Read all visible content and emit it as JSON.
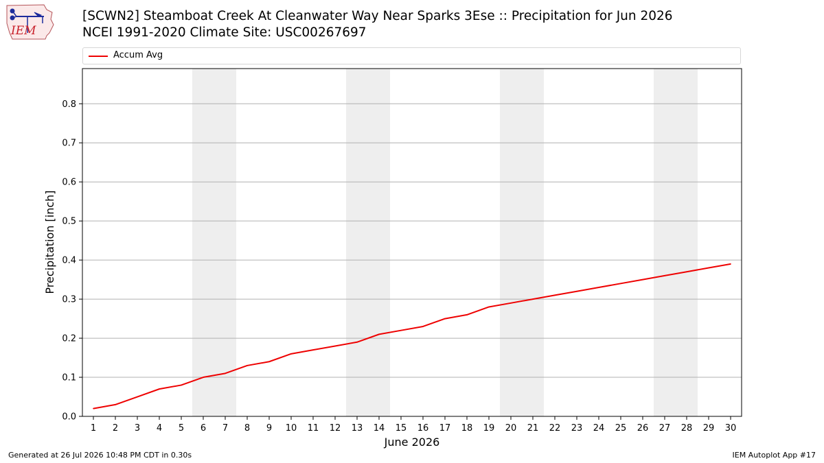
{
  "header": {
    "title_line1": "[SCWN2] Steamboat Creek At Cleanwater Way Near Sparks 3Ese :: Precipitation for Jun 2026",
    "title_line2": "NCEI 1991-2020 Climate Site: USC00267697"
  },
  "logo": {
    "text": "IEM"
  },
  "footer": {
    "generated": "Generated at 26 Jul 2026 10:48 PM CDT in 0.30s",
    "app": "IEM Autoplot App #17"
  },
  "colors": {
    "line": "#ee0000",
    "weekend_band": "#eeeeee",
    "grid": "#b0b0b0"
  },
  "chart_data": {
    "type": "line",
    "title": "[SCWN2] Steamboat Creek At Cleanwater Way Near Sparks 3Ese :: Precipitation for Jun 2026",
    "subtitle": "NCEI 1991-2020 Climate Site: USC00267697",
    "xlabel": "June 2026",
    "ylabel": "Precipitation [inch]",
    "x": [
      1,
      2,
      3,
      4,
      5,
      6,
      7,
      8,
      9,
      10,
      11,
      12,
      13,
      14,
      15,
      16,
      17,
      18,
      19,
      20,
      21,
      22,
      23,
      24,
      25,
      26,
      27,
      28,
      29,
      30
    ],
    "xlim": [
      0.5,
      30.5
    ],
    "ylim": [
      0.0,
      0.89
    ],
    "yticks": [
      0.0,
      0.1,
      0.2,
      0.3,
      0.4,
      0.5,
      0.6,
      0.7,
      0.8
    ],
    "ytick_labels": [
      "0.0",
      "0.1",
      "0.2",
      "0.3",
      "0.4",
      "0.5",
      "0.6",
      "0.7",
      "0.8"
    ],
    "grid": "horizontal",
    "legend_position": "top",
    "series": [
      {
        "name": "Accum Avg",
        "color": "#ee0000",
        "values": [
          0.02,
          0.03,
          0.05,
          0.07,
          0.08,
          0.1,
          0.11,
          0.13,
          0.14,
          0.16,
          0.17,
          0.18,
          0.19,
          0.21,
          0.22,
          0.23,
          0.25,
          0.26,
          0.28,
          0.29,
          0.3,
          0.31,
          0.32,
          0.33,
          0.34,
          0.35,
          0.36,
          0.37,
          0.38,
          0.39
        ]
      }
    ],
    "weekend_days": [
      [
        6,
        7
      ],
      [
        13,
        14
      ],
      [
        20,
        21
      ],
      [
        27,
        28
      ]
    ]
  }
}
